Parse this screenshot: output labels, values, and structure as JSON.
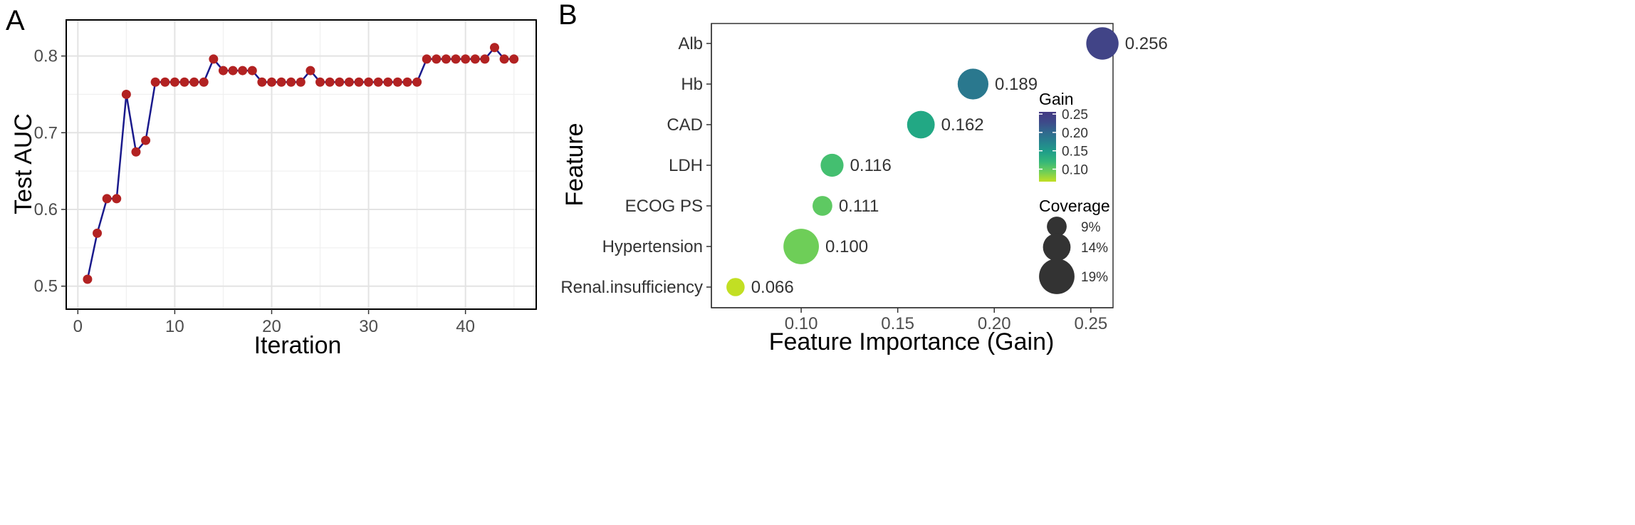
{
  "chart_data": [
    {
      "type": "line",
      "panel_label": "A",
      "xlabel": "Iteration",
      "ylabel": "Test AUC",
      "xlim": [
        -1.2,
        47.3
      ],
      "ylim": [
        0.47,
        0.847
      ],
      "xticks": [
        0,
        10,
        20,
        30,
        40
      ],
      "yticks": [
        0.5,
        0.6,
        0.7,
        0.8
      ],
      "grid": true,
      "line_color": "#1a1a8c",
      "point_color": "#b22222",
      "x": [
        1,
        2,
        3,
        4,
        5,
        6,
        7,
        8,
        9,
        10,
        11,
        12,
        13,
        14,
        15,
        16,
        17,
        18,
        19,
        20,
        21,
        22,
        23,
        24,
        25,
        26,
        27,
        28,
        29,
        30,
        31,
        32,
        33,
        34,
        35,
        36,
        37,
        38,
        39,
        40,
        41,
        42,
        43,
        44,
        45
      ],
      "y": [
        0.509,
        0.569,
        0.614,
        0.614,
        0.75,
        0.675,
        0.69,
        0.766,
        0.766,
        0.766,
        0.766,
        0.766,
        0.766,
        0.796,
        0.781,
        0.781,
        0.781,
        0.781,
        0.766,
        0.766,
        0.766,
        0.766,
        0.766,
        0.781,
        0.766,
        0.766,
        0.766,
        0.766,
        0.766,
        0.766,
        0.766,
        0.766,
        0.766,
        0.766,
        0.766,
        0.796,
        0.796,
        0.796,
        0.796,
        0.796,
        0.796,
        0.796,
        0.811,
        0.796,
        0.796
      ]
    },
    {
      "type": "scatter",
      "panel_label": "B",
      "xlabel": "Feature Importance (Gain)",
      "ylabel": "Feature",
      "xlim": [
        0.0535,
        0.2615
      ],
      "xticks": [
        0.1,
        0.15,
        0.2,
        0.25
      ],
      "xtick_labels": [
        "0.10",
        "0.15",
        "0.20",
        "0.25"
      ],
      "features": [
        "Alb",
        "Hb",
        "CAD",
        "LDH",
        "ECOG PS",
        "Hypertension",
        "Renal.insufficiency"
      ],
      "gain": [
        0.256,
        0.189,
        0.162,
        0.116,
        0.111,
        0.1,
        0.066
      ],
      "value_labels": [
        "0.256",
        "0.189",
        "0.162",
        "0.116",
        "0.111",
        "0.100",
        "0.066"
      ],
      "coverage_pct": [
        17,
        16,
        14,
        11,
        9,
        19,
        8
      ],
      "colors": [
        "#414487",
        "#2a788e",
        "#22a884",
        "#44bf70",
        "#5ec962",
        "#6ece58",
        "#c2df23"
      ],
      "gain_legend": {
        "title": "Gain",
        "ticks": [
          "0.25",
          "0.20",
          "0.15",
          "0.10"
        ],
        "tick_values": [
          0.25,
          0.2,
          0.15,
          0.1
        ],
        "range": [
          0.066,
          0.256
        ],
        "gradient": [
          "#c2df23",
          "#6ece58",
          "#35b779",
          "#1f9e89",
          "#26828e",
          "#31688e",
          "#3e4989",
          "#443983"
        ]
      },
      "coverage_legend": {
        "title": "Coverage",
        "labels": [
          "9%",
          "14%",
          "19%"
        ],
        "values": [
          9,
          14,
          19
        ],
        "color": "#333333"
      }
    }
  ]
}
